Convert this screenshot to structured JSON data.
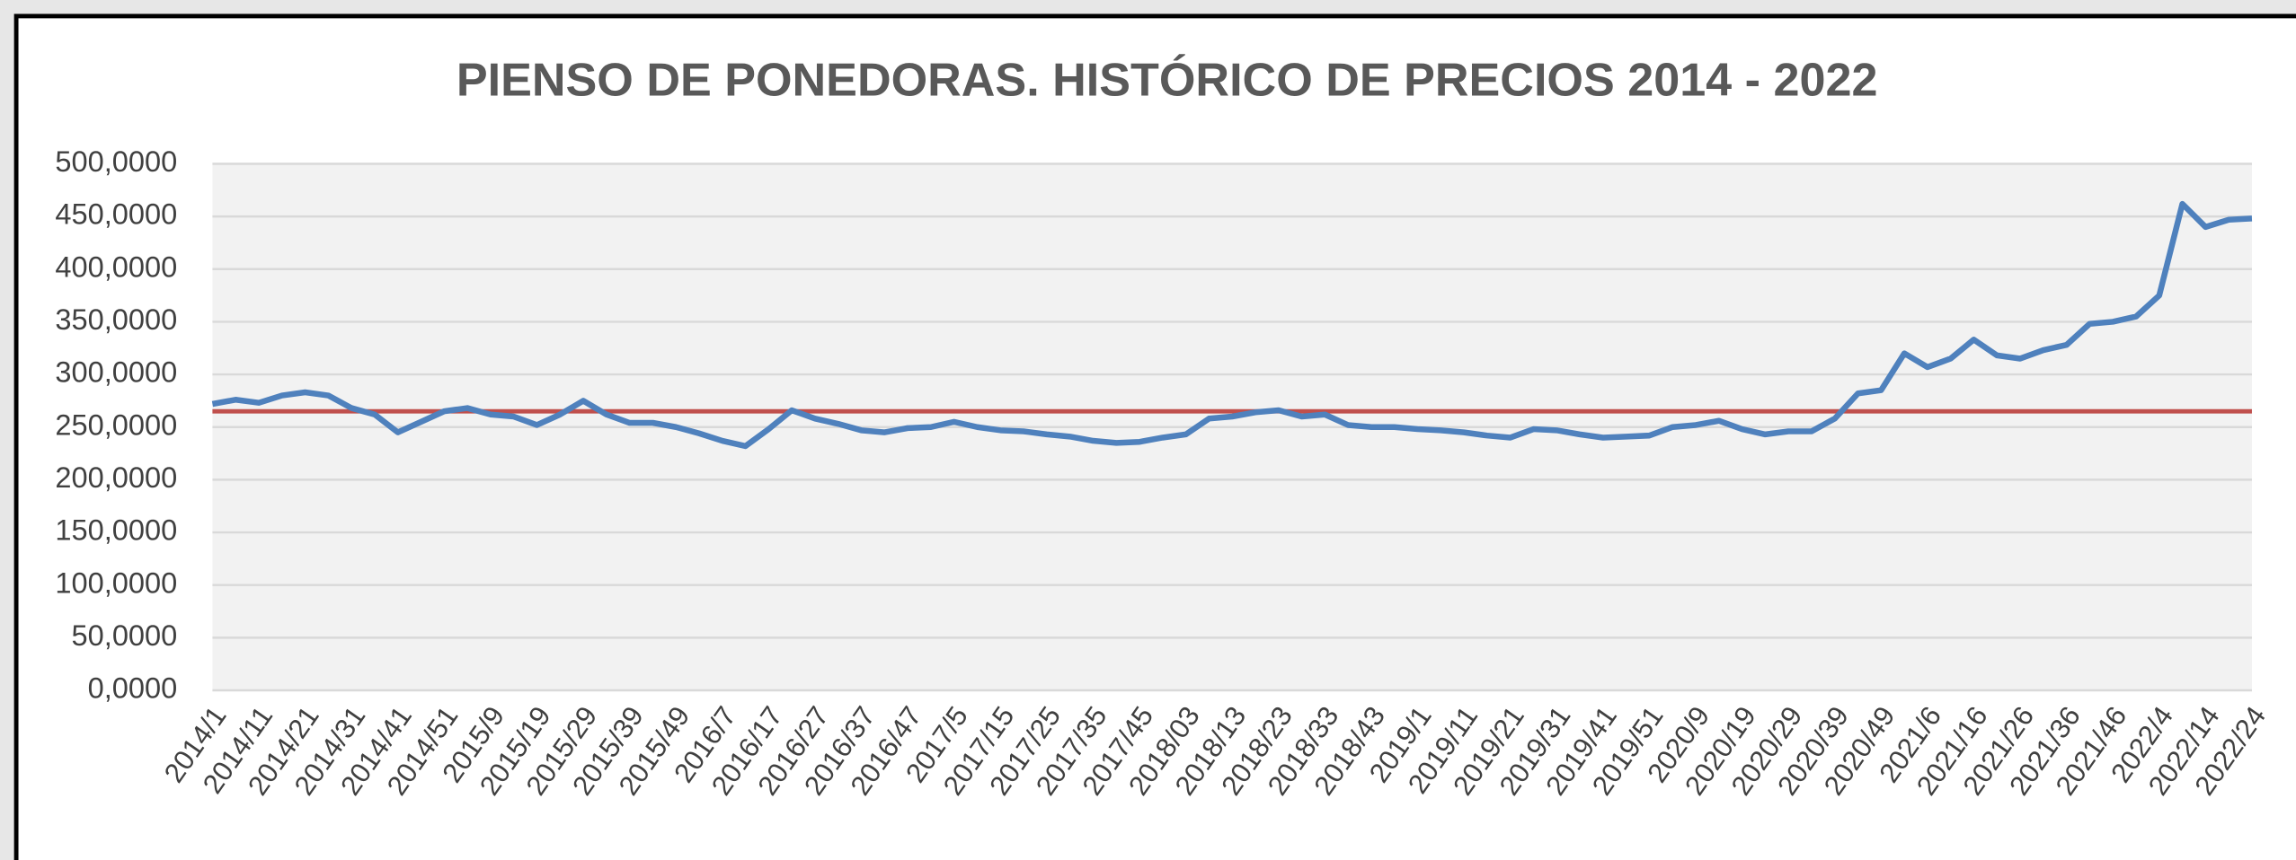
{
  "chart_data": {
    "type": "line",
    "title": "PIENSO DE PONEDORAS. HISTÓRICO DE PRECIOS 2014 - 2022",
    "categories": [
      "2014/1",
      null,
      "2014/11",
      null,
      "2014/21",
      null,
      "2014/31",
      null,
      "2014/41",
      null,
      "2014/51",
      null,
      "2015/9",
      null,
      "2015/19",
      null,
      "2015/29",
      null,
      "2015/39",
      null,
      "2015/49",
      null,
      "2016/7",
      null,
      "2016/17",
      null,
      "2016/27",
      null,
      "2016/37",
      null,
      "2016/47",
      null,
      "2017/5",
      null,
      "2017/15",
      null,
      "2017/25",
      null,
      "2017/35",
      null,
      "2017/45",
      null,
      "2018/03",
      null,
      "2018/13",
      null,
      "2018/23",
      null,
      "2018/33",
      null,
      "2018/43",
      null,
      "2019/1",
      null,
      "2019/11",
      null,
      "2019/21",
      null,
      "2019/31",
      null,
      "2019/41",
      null,
      "2019/51",
      null,
      "2020/9",
      null,
      "2020/19",
      null,
      "2020/29",
      null,
      "2020/39",
      null,
      "2020/49",
      null,
      "2021/6",
      null,
      "2021/16",
      null,
      "2021/26",
      null,
      "2021/36",
      null,
      "2021/46",
      null,
      "2022/4",
      null,
      "2022/14",
      null,
      "2022/24"
    ],
    "values": [
      272,
      276,
      273,
      280,
      283,
      280,
      268,
      262,
      245,
      255,
      265,
      268,
      262,
      260,
      252,
      262,
      275,
      262,
      254,
      254,
      250,
      244,
      237,
      232,
      248,
      266,
      258,
      253,
      247,
      245,
      249,
      250,
      255,
      250,
      247,
      246,
      243,
      241,
      237,
      235,
      236,
      240,
      243,
      258,
      260,
      264,
      266,
      260,
      262,
      252,
      250,
      250,
      248,
      247,
      245,
      242,
      240,
      248,
      247,
      243,
      240,
      241,
      242,
      250,
      252,
      256,
      248,
      243,
      246,
      246,
      258,
      282,
      285,
      320,
      307,
      315,
      333,
      318,
      315,
      323,
      328,
      348,
      350,
      355,
      375,
      462,
      440,
      447,
      448
    ],
    "color": "#4f81bd",
    "reference_line": {
      "value": 265,
      "color": "#c0504d"
    },
    "ylim": [
      0,
      500
    ],
    "yticks": [
      {
        "value": 0,
        "label": "0,0000"
      },
      {
        "value": 50,
        "label": "50,0000"
      },
      {
        "value": 100,
        "label": "100,0000"
      },
      {
        "value": 150,
        "label": "150,0000"
      },
      {
        "value": 200,
        "label": "200,0000"
      },
      {
        "value": 250,
        "label": "250,0000"
      },
      {
        "value": 300,
        "label": "300,0000"
      },
      {
        "value": 350,
        "label": "350,0000"
      },
      {
        "value": 400,
        "label": "400,0000"
      },
      {
        "value": 450,
        "label": "450,0000"
      },
      {
        "value": 500,
        "label": "500,0000"
      }
    ],
    "grid": true
  }
}
